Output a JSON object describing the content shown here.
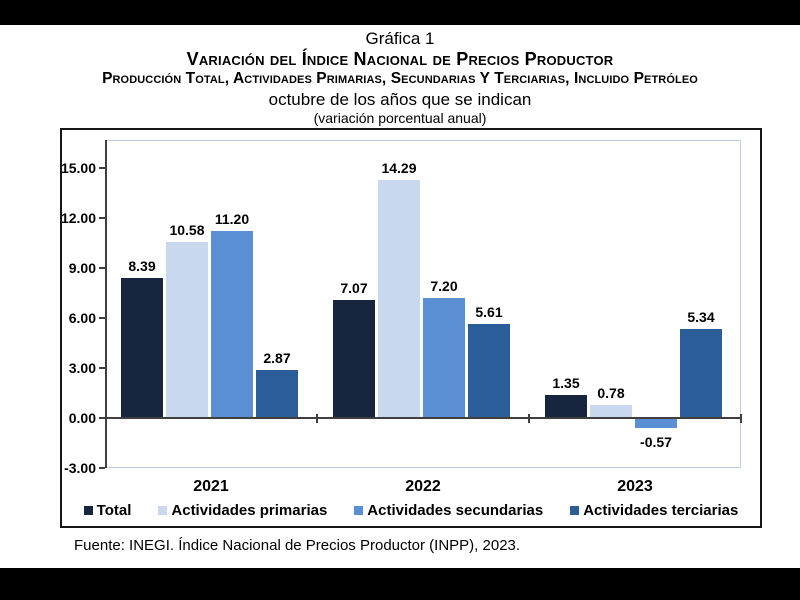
{
  "header": {
    "chart_label": "Gráfica 1",
    "title": "Variación del Índice Nacional de Precios Productor",
    "subtitle": "Producción Total, Actividades Primarias, Secundarias Y Terciarias, Incluido Petróleo",
    "period": "octubre de los años que se indican",
    "unit_note": "(variación porcentual anual)"
  },
  "chart_data": {
    "type": "bar",
    "title": "Variación del Índice Nacional de Precios Productor",
    "categories": [
      "2021",
      "2022",
      "2023"
    ],
    "series": [
      {
        "name": "Total",
        "color": "#17253E",
        "values": [
          8.39,
          7.07,
          1.35
        ]
      },
      {
        "name": "Actividades primarias",
        "color": "#C9D8EE",
        "values": [
          10.58,
          14.29,
          0.78
        ]
      },
      {
        "name": "Actividades secundarias",
        "color": "#5B8FD4",
        "values": [
          11.2,
          7.2,
          -0.57
        ]
      },
      {
        "name": "Actividades terciarias",
        "color": "#2B5D98",
        "values": [
          2.87,
          5.61,
          5.34
        ]
      }
    ],
    "xlabel": "",
    "ylabel": "",
    "ylim": [
      -3,
      15
    ],
    "yticks": [
      15.0,
      12.0,
      9.0,
      6.0,
      3.0,
      0.0,
      -3.0
    ],
    "ytick_labels": [
      "15.00",
      "12.00",
      "9.00",
      "6.00",
      "3.00",
      "0.00",
      "-3.00"
    ],
    "grid": false,
    "value_labels": true,
    "legend_position": "bottom",
    "axis_color": "#3F3F3F",
    "plot_border_color": "#B9CDE5"
  },
  "footer": {
    "source": "Fuente: INEGI. Índice Nacional de Precios Productor (INPP), 2023."
  }
}
